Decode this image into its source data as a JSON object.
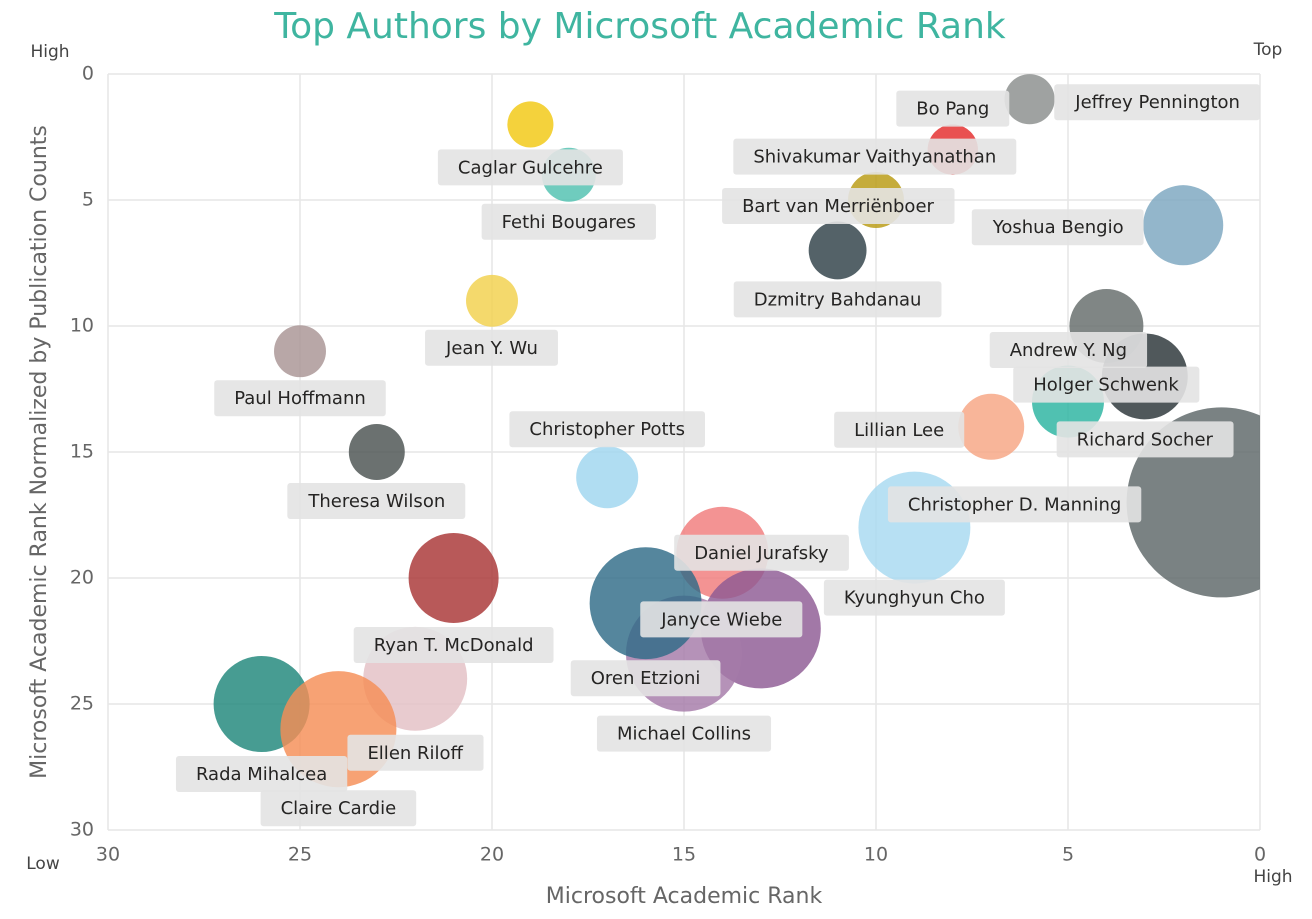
{
  "chart_data": {
    "type": "bubble",
    "title": "Top Authors by Microsoft Academic Rank",
    "x_label": "Microsoft Academic Rank",
    "y_label": "Microsoft Academic Rank Normalized by Publication Counts",
    "annotations": [
      "High",
      "Top",
      "Low",
      "High"
    ],
    "xlim": [
      30,
      0
    ],
    "xticks": [
      30,
      25,
      20,
      15,
      10,
      5,
      0
    ],
    "ylim": [
      0,
      30
    ],
    "yticks": [
      0,
      5,
      10,
      15,
      20,
      25,
      30
    ],
    "grid": true,
    "points": [
      {
        "name": "Jeffrey Pennington",
        "x": 6,
        "y": 1,
        "size": 70,
        "color": "#8a8d8c"
      },
      {
        "name": "Bo Pang",
        "x": 8,
        "y": 3,
        "size": 70,
        "color": "#e84c4c"
      },
      {
        "name": "Shivakumar Vaithyanathan",
        "x": 8,
        "y": 3,
        "size": 70,
        "color": "#e84c4c"
      },
      {
        "name": "Bart van Merriënboer",
        "x": 10,
        "y": 5,
        "size": 87,
        "color": "#b89a10"
      },
      {
        "name": "Dzmitry Bahdanau",
        "x": 11,
        "y": 7,
        "size": 93,
        "color": "#2e3f47"
      },
      {
        "name": "Yoshua Bengio",
        "x": 2,
        "y": 6,
        "size": 178,
        "color": "#7ba6c0"
      },
      {
        "name": "Caglar Gulcehre",
        "x": 19,
        "y": 2,
        "size": 59,
        "color": "#f2c811"
      },
      {
        "name": "Fethi Bougares",
        "x": 18,
        "y": 4,
        "size": 81,
        "color": "#4fc1b0"
      },
      {
        "name": "Jean Y. Wu",
        "x": 20,
        "y": 9,
        "size": 75,
        "color": "#f2d14c"
      },
      {
        "name": "Paul Hoffmann",
        "x": 25,
        "y": 11,
        "size": 75,
        "color": "#a89494"
      },
      {
        "name": "Theresa Wilson",
        "x": 23,
        "y": 15,
        "size": 87,
        "color": "#4a5251"
      },
      {
        "name": "Christopher Potts",
        "x": 17,
        "y": 16,
        "size": 107,
        "color": "#9fd6ef"
      },
      {
        "name": "Andrew Y. Ng",
        "x": 4,
        "y": 10,
        "size": 152,
        "color": "#646b6a"
      },
      {
        "name": "Holger Schwenk",
        "x": 5,
        "y": 13,
        "size": 144,
        "color": "#2ab3a0"
      },
      {
        "name": "Richard Socher",
        "x": 3,
        "y": 12,
        "size": 205,
        "color": "#2a3337"
      },
      {
        "name": "Lillian Lee",
        "x": 7,
        "y": 14,
        "size": 121,
        "color": "#f7a583"
      },
      {
        "name": "Christopher D. Manning",
        "x": 1,
        "y": 17,
        "size": 1003,
        "color": "#5d6668"
      },
      {
        "name": "Kyunghyun Cho",
        "x": 9,
        "y": 18,
        "size": 348,
        "color": "#a7d9f0"
      },
      {
        "name": "Daniel Jurafsky",
        "x": 14,
        "y": 19,
        "size": 235,
        "color": "#f07b7b"
      },
      {
        "name": "Janyce Wiebe",
        "x": 13,
        "y": 22,
        "size": 400,
        "color": "#8e5a94"
      },
      {
        "name": "Michael Collins",
        "x": 15,
        "y": 23,
        "size": 374,
        "color": "#a57aa8"
      },
      {
        "name": "Oren Etzioni",
        "x": 16,
        "y": 21,
        "size": 348,
        "color": "#2f6b88"
      },
      {
        "name": "Ryan T. McDonald",
        "x": 21,
        "y": 20,
        "size": 225,
        "color": "#a83434"
      },
      {
        "name": "Ellen Riloff",
        "x": 22,
        "y": 24,
        "size": 300,
        "color": "#e3c0c4"
      },
      {
        "name": "Rada Mihalcea",
        "x": 26,
        "y": 25,
        "size": 256,
        "color": "#1e867a"
      },
      {
        "name": "Claire Cardie",
        "x": 24,
        "y": 26,
        "size": 374,
        "color": "#f58d55"
      }
    ]
  }
}
